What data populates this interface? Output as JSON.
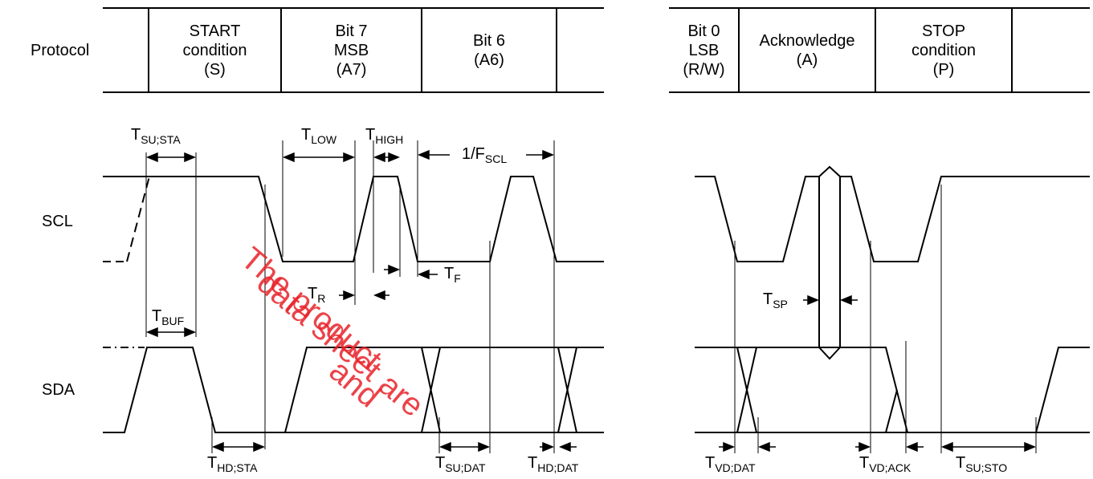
{
  "protocol_label": "Protocol",
  "protocol_cells_left": [
    {
      "lines": [
        "START",
        "condition",
        "(S)"
      ]
    },
    {
      "lines": [
        "Bit 7",
        "MSB",
        "(A7)"
      ]
    },
    {
      "lines": [
        "Bit 6",
        "(A6)"
      ]
    }
  ],
  "protocol_cells_right": [
    {
      "lines": [
        "Bit 0",
        "LSB",
        "(R/W)"
      ]
    },
    {
      "lines": [
        "Acknowledge",
        "(A)"
      ]
    },
    {
      "lines": [
        "STOP",
        "condition",
        "(P)"
      ]
    }
  ],
  "signals": {
    "scl": "SCL",
    "sda": "SDA"
  },
  "timing_labels": {
    "tsu_sta": {
      "main": "T",
      "sub": "SU;STA"
    },
    "tlow": {
      "main": "T",
      "sub": "LOW"
    },
    "thigh": {
      "main": "T",
      "sub": "HIGH"
    },
    "fscl": {
      "main": "1/F",
      "sub": "SCL"
    },
    "tf": {
      "main": "T",
      "sub": "F"
    },
    "tr": {
      "main": "T",
      "sub": "R"
    },
    "tbuf": {
      "main": "T",
      "sub": "BUF"
    },
    "thd_sta": {
      "main": "T",
      "sub": "HD;STA"
    },
    "tsu_dat": {
      "main": "T",
      "sub": "SU;DAT"
    },
    "thd_dat": {
      "main": "T",
      "sub": "HD;DAT"
    },
    "tsp": {
      "main": "T",
      "sub": "SP"
    },
    "tvd_dat": {
      "main": "T",
      "sub": "VD;DAT"
    },
    "tvd_ack": {
      "main": "T",
      "sub": "VD;ACK"
    },
    "tsu_sto": {
      "main": "T",
      "sub": "SU;STO"
    }
  },
  "watermark": [
    "The product",
    "data sheet are",
    "and"
  ],
  "colors": {
    "line": "#000000",
    "watermark": "#e8232a"
  }
}
